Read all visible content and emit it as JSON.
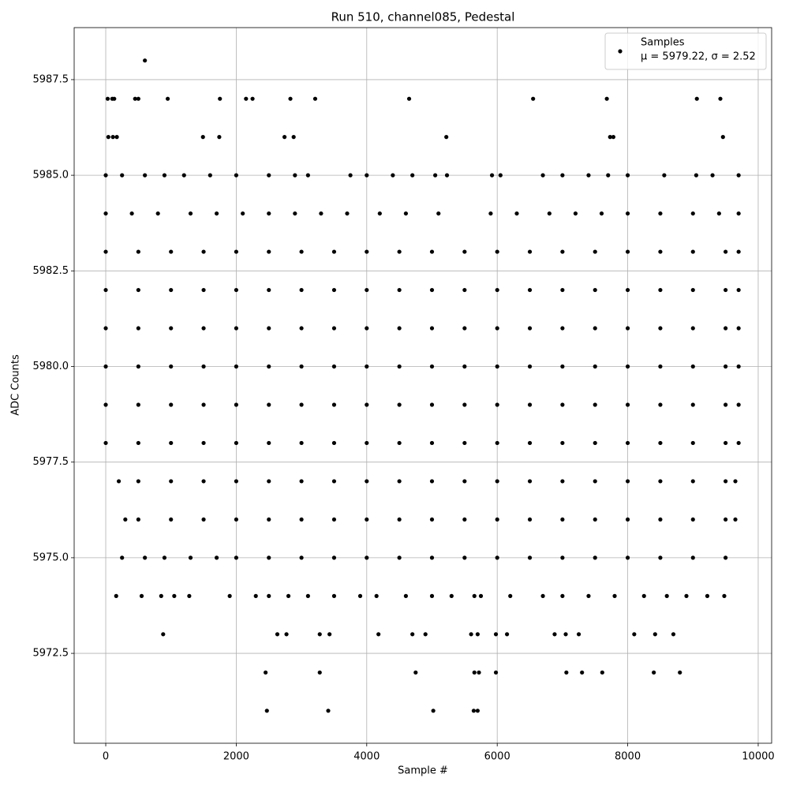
{
  "chart_data": {
    "type": "scatter",
    "title": "Run 510, channel085, Pedestal",
    "x_label": "Sample #",
    "y_label": "ADC Counts",
    "grid": true,
    "legend": "upper right",
    "legend_note": "μ = 5979.22, σ = 2.52",
    "xlim": [
      -484,
      10206
    ],
    "ylim": [
      5970.15,
      5988.86
    ],
    "xticks": [
      0,
      2000,
      4000,
      6000,
      8000,
      10000
    ],
    "yticks": [
      5972.5,
      {
        "value": 5975,
        "label": "5975.0"
      },
      5977.5,
      {
        "value": 5980,
        "label": "5980.0"
      },
      5982.5,
      {
        "value": 5985,
        "label": "5985.0"
      },
      5987.5
    ],
    "series": [
      {
        "name": "Samples",
        "color": "#000000",
        "x": [
          600,
          30,
          100,
          130,
          450,
          500,
          950,
          1750,
          2150,
          2250,
          2830,
          3210,
          4650,
          6550,
          7680,
          9060,
          9420,
          40,
          110,
          170,
          1490,
          1740,
          2740,
          2880,
          5220,
          7730,
          7780,
          9460,
          0,
          250,
          600,
          900,
          1200,
          1600,
          2000,
          2500,
          2900,
          3100,
          3750,
          4000,
          4400,
          4700,
          5050,
          5230,
          5920,
          6050,
          6700,
          7000,
          7400,
          7700,
          8000,
          8560,
          9050,
          9300,
          9700,
          0,
          400,
          800,
          1300,
          1700,
          2100,
          2500,
          2900,
          3300,
          3700,
          4200,
          4600,
          5100,
          5900,
          6300,
          6800,
          7200,
          7600,
          8000,
          8500,
          9000,
          9400,
          9700,
          0,
          500,
          1000,
          1500,
          2000,
          2500,
          3000,
          3500,
          4000,
          4500,
          5000,
          5500,
          6000,
          6500,
          7000,
          7500,
          8000,
          8500,
          9000,
          9500,
          9700,
          0,
          500,
          1000,
          1500,
          2000,
          2500,
          3000,
          3500,
          4000,
          4500,
          5000,
          5500,
          6000,
          6500,
          7000,
          7500,
          8000,
          8500,
          9000,
          9500,
          9700,
          0,
          500,
          1000,
          1500,
          2000,
          2500,
          3000,
          3500,
          4000,
          4500,
          5000,
          5500,
          6000,
          6500,
          7000,
          7500,
          8000,
          8500,
          9000,
          9500,
          9700,
          0,
          500,
          1000,
          1500,
          2000,
          2500,
          3000,
          3500,
          4000,
          4500,
          5000,
          5500,
          6000,
          6500,
          7000,
          7500,
          8000,
          8500,
          9000,
          9500,
          9700,
          0,
          500,
          1000,
          1500,
          2000,
          2500,
          3000,
          3500,
          4000,
          4500,
          5000,
          5500,
          6000,
          6500,
          7000,
          7500,
          8000,
          8500,
          9000,
          9500,
          9700,
          0,
          500,
          1000,
          1500,
          2000,
          2500,
          3000,
          3500,
          4000,
          4500,
          5000,
          5500,
          6000,
          6500,
          7000,
          7500,
          8000,
          8500,
          9000,
          9500,
          9700,
          200,
          500,
          1000,
          1500,
          2000,
          2500,
          3000,
          3500,
          4000,
          4500,
          5000,
          5500,
          6000,
          6500,
          7000,
          7500,
          8000,
          8500,
          9000,
          9500,
          9650,
          300,
          500,
          1000,
          1500,
          2000,
          2500,
          3000,
          3500,
          4000,
          4500,
          5000,
          5500,
          6000,
          6500,
          7000,
          7500,
          8000,
          8500,
          9000,
          9500,
          9650,
          250,
          600,
          900,
          1300,
          1700,
          2000,
          2500,
          3000,
          3500,
          4000,
          4500,
          5000,
          5500,
          6000,
          6500,
          7000,
          7500,
          8000,
          8500,
          9000,
          9500,
          160,
          550,
          850,
          1050,
          1280,
          1900,
          2300,
          2500,
          2800,
          3100,
          3500,
          3900,
          4150,
          4600,
          5000,
          5300,
          5650,
          5750,
          6200,
          6700,
          7000,
          7400,
          7800,
          8250,
          8600,
          8900,
          9220,
          9480,
          880,
          2630,
          2770,
          3280,
          3430,
          4180,
          4700,
          4900,
          5600,
          5700,
          5980,
          6150,
          6880,
          7050,
          7250,
          8100,
          8420,
          8700,
          2450,
          3280,
          4750,
          5650,
          5720,
          5980,
          7060,
          7300,
          7610,
          8400,
          8800,
          2470,
          3410,
          5020,
          5640,
          5700
        ],
        "values": [
          5988,
          5987,
          5987,
          5987,
          5987,
          5987,
          5987,
          5987,
          5987,
          5987,
          5987,
          5987,
          5987,
          5987,
          5987,
          5987,
          5987,
          5986,
          5986,
          5986,
          5986,
          5986,
          5986,
          5986,
          5986,
          5986,
          5986,
          5986,
          5985,
          5985,
          5985,
          5985,
          5985,
          5985,
          5985,
          5985,
          5985,
          5985,
          5985,
          5985,
          5985,
          5985,
          5985,
          5985,
          5985,
          5985,
          5985,
          5985,
          5985,
          5985,
          5985,
          5985,
          5985,
          5985,
          5985,
          5984,
          5984,
          5984,
          5984,
          5984,
          5984,
          5984,
          5984,
          5984,
          5984,
          5984,
          5984,
          5984,
          5984,
          5984,
          5984,
          5984,
          5984,
          5984,
          5984,
          5984,
          5984,
          5984,
          5983,
          5983,
          5983,
          5983,
          5983,
          5983,
          5983,
          5983,
          5983,
          5983,
          5983,
          5983,
          5983,
          5983,
          5983,
          5983,
          5983,
          5983,
          5983,
          5983,
          5983,
          5982,
          5982,
          5982,
          5982,
          5982,
          5982,
          5982,
          5982,
          5982,
          5982,
          5982,
          5982,
          5982,
          5982,
          5982,
          5982,
          5982,
          5982,
          5982,
          5982,
          5982,
          5981,
          5981,
          5981,
          5981,
          5981,
          5981,
          5981,
          5981,
          5981,
          5981,
          5981,
          5981,
          5981,
          5981,
          5981,
          5981,
          5981,
          5981,
          5981,
          5981,
          5981,
          5980,
          5980,
          5980,
          5980,
          5980,
          5980,
          5980,
          5980,
          5980,
          5980,
          5980,
          5980,
          5980,
          5980,
          5980,
          5980,
          5980,
          5980,
          5980,
          5980,
          5980,
          5979,
          5979,
          5979,
          5979,
          5979,
          5979,
          5979,
          5979,
          5979,
          5979,
          5979,
          5979,
          5979,
          5979,
          5979,
          5979,
          5979,
          5979,
          5979,
          5979,
          5979,
          5978,
          5978,
          5978,
          5978,
          5978,
          5978,
          5978,
          5978,
          5978,
          5978,
          5978,
          5978,
          5978,
          5978,
          5978,
          5978,
          5978,
          5978,
          5978,
          5978,
          5978,
          5977,
          5977,
          5977,
          5977,
          5977,
          5977,
          5977,
          5977,
          5977,
          5977,
          5977,
          5977,
          5977,
          5977,
          5977,
          5977,
          5977,
          5977,
          5977,
          5977,
          5977,
          5976,
          5976,
          5976,
          5976,
          5976,
          5976,
          5976,
          5976,
          5976,
          5976,
          5976,
          5976,
          5976,
          5976,
          5976,
          5976,
          5976,
          5976,
          5976,
          5976,
          5976,
          5975,
          5975,
          5975,
          5975,
          5975,
          5975,
          5975,
          5975,
          5975,
          5975,
          5975,
          5975,
          5975,
          5975,
          5975,
          5975,
          5975,
          5975,
          5975,
          5975,
          5975,
          5974,
          5974,
          5974,
          5974,
          5974,
          5974,
          5974,
          5974,
          5974,
          5974,
          5974,
          5974,
          5974,
          5974,
          5974,
          5974,
          5974,
          5974,
          5974,
          5974,
          5974,
          5974,
          5974,
          5974,
          5974,
          5974,
          5974,
          5974,
          5973,
          5973,
          5973,
          5973,
          5973,
          5973,
          5973,
          5973,
          5973,
          5973,
          5973,
          5973,
          5973,
          5973,
          5973,
          5973,
          5973,
          5973,
          5972,
          5972,
          5972,
          5972,
          5972,
          5972,
          5972,
          5972,
          5972,
          5972,
          5972,
          5971,
          5971,
          5971,
          5971,
          5971
        ]
      }
    ]
  }
}
